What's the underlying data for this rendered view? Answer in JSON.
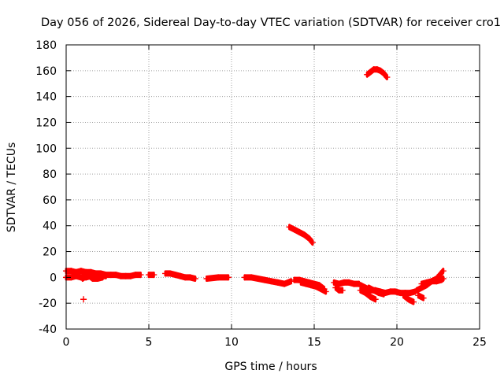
{
  "chart_data": {
    "type": "scatter",
    "title": "Day 056 of 2026, Sidereal Day-to-day VTEC variation (SDTVAR) for receiver cro1",
    "xlabel": "GPS time / hours",
    "ylabel": "SDTVAR / TECUs",
    "xlim": [
      0,
      25
    ],
    "ylim": [
      -40,
      180
    ],
    "x_ticks": [
      0,
      5,
      10,
      15,
      20,
      25
    ],
    "y_ticks": [
      -40,
      -20,
      0,
      20,
      40,
      60,
      80,
      100,
      120,
      140,
      160,
      180
    ],
    "grid": true,
    "marker": "+",
    "series_color": "#ff0000",
    "segments": [
      {
        "x": [
          0.0,
          0.3,
          0.6,
          0.9,
          1.2,
          1.5,
          1.8,
          2.1,
          2.4,
          2.7,
          3.0,
          3.3,
          3.6,
          3.9,
          4.2,
          4.5
        ],
        "y": [
          5,
          5,
          4,
          5,
          4,
          4,
          3,
          3,
          2,
          2,
          2,
          1,
          1,
          1,
          2,
          2
        ]
      },
      {
        "x": [
          0.0,
          0.3,
          0.6,
          0.9,
          1.2,
          1.5,
          1.8,
          2.1,
          2.4
        ],
        "y": [
          0,
          0,
          1,
          0,
          0,
          1,
          1,
          1,
          1
        ]
      },
      {
        "x": [
          1.0,
          1.3,
          1.6,
          1.9,
          2.2
        ],
        "y": [
          -1,
          2,
          -1,
          -1,
          0
        ]
      },
      {
        "x": [
          5.0,
          5.3
        ],
        "y": [
          2,
          2
        ]
      },
      {
        "x": [
          6.0,
          6.3,
          6.6,
          6.9,
          7.2,
          7.5,
          7.8
        ],
        "y": [
          3,
          3,
          2,
          1,
          0,
          0,
          -1
        ]
      },
      {
        "x": [
          8.5,
          9.2,
          9.8
        ],
        "y": [
          -1,
          0,
          0
        ]
      },
      {
        "x": [
          10.8,
          11.2,
          11.6,
          12.0,
          12.4,
          12.8,
          13.2,
          13.6
        ],
        "y": [
          0,
          0,
          -1,
          -2,
          -3,
          -4,
          -5,
          -3
        ]
      },
      {
        "x": [
          13.5,
          13.8,
          14.1,
          14.4,
          14.7,
          14.9
        ],
        "y": [
          39,
          37,
          35,
          33,
          30,
          27
        ]
      },
      {
        "x": [
          13.8,
          14.1,
          14.4,
          14.7,
          15.0,
          15.3,
          15.6
        ],
        "y": [
          -2,
          -2,
          -3,
          -4,
          -5,
          -6,
          -9
        ]
      },
      {
        "x": [
          14.2,
          14.5,
          14.8,
          15.1,
          15.4,
          15.7
        ],
        "y": [
          -4,
          -5,
          -6,
          -7,
          -9,
          -11
        ]
      },
      {
        "x": [
          16.2,
          16.5,
          16.8,
          17.1,
          17.4,
          17.7
        ],
        "y": [
          -4,
          -5,
          -4,
          -4,
          -5,
          -5
        ]
      },
      {
        "x": [
          16.3,
          16.5,
          16.7
        ],
        "y": [
          -8,
          -10,
          -10
        ]
      },
      {
        "x": [
          17.8,
          18.1,
          18.4,
          18.7,
          19.0,
          19.3,
          19.6,
          19.9,
          20.2,
          20.5,
          20.8,
          21.1
        ],
        "y": [
          -6,
          -8,
          -10,
          -10,
          -11,
          -12,
          -11,
          -11,
          -12,
          -12,
          -12,
          -11
        ]
      },
      {
        "x": [
          17.8,
          18.1,
          18.4,
          18.7
        ],
        "y": [
          -10,
          -12,
          -15,
          -17
        ]
      },
      {
        "x": [
          18.3,
          18.6,
          18.9,
          19.2
        ],
        "y": [
          -8,
          -10,
          -12,
          -13
        ]
      },
      {
        "x": [
          20.4,
          20.7,
          21.0
        ],
        "y": [
          -14,
          -17,
          -19
        ]
      },
      {
        "x": [
          21.3,
          21.6
        ],
        "y": [
          -14,
          -16
        ]
      },
      {
        "x": [
          18.2,
          18.4,
          18.6,
          18.8,
          19.0,
          19.2,
          19.4
        ],
        "y": [
          157,
          159,
          161,
          161,
          160,
          158,
          155
        ]
      },
      {
        "x": [
          21.2,
          21.5,
          21.8,
          22.1,
          22.4,
          22.6,
          22.8
        ],
        "y": [
          -10,
          -8,
          -6,
          -3,
          -1,
          2,
          5
        ]
      },
      {
        "x": [
          21.5,
          21.8,
          22.1,
          22.4,
          22.7,
          22.8
        ],
        "y": [
          -5,
          -4,
          -3,
          -3,
          -2,
          -1
        ]
      },
      {
        "x": [
          1.05
        ],
        "y": [
          -17
        ]
      }
    ]
  }
}
